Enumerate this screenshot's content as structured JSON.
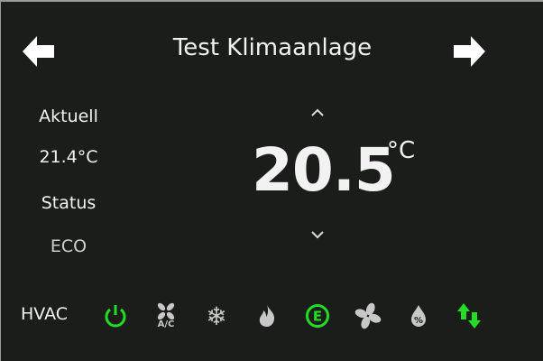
{
  "header": {
    "title": "Test Klimaanlage",
    "prev_icon": "arrow-left-icon",
    "next_icon": "arrow-right-icon"
  },
  "left": {
    "current_label": "Aktuell",
    "current_value": "21.4°C",
    "status_label": "Status",
    "status_value": "ECO"
  },
  "setpoint": {
    "value": "20.5",
    "unit": "°C"
  },
  "hvac": {
    "label": "HVAC",
    "modes": [
      {
        "icon": "power-icon",
        "active": true
      },
      {
        "icon": "ac-fan-icon",
        "label": "A/C",
        "active": false
      },
      {
        "icon": "snowflake-icon",
        "active": false
      },
      {
        "icon": "flame-icon",
        "active": false
      },
      {
        "icon": "eco-icon",
        "label": "E",
        "active": true
      },
      {
        "icon": "fan-icon",
        "active": false
      },
      {
        "icon": "dehumidify-icon",
        "active": false
      },
      {
        "icon": "auto-swap-icon",
        "active": true
      }
    ]
  },
  "colors": {
    "active": "#22dd22",
    "inactive": "#c8c8c8",
    "background": "#1a1d1a"
  }
}
